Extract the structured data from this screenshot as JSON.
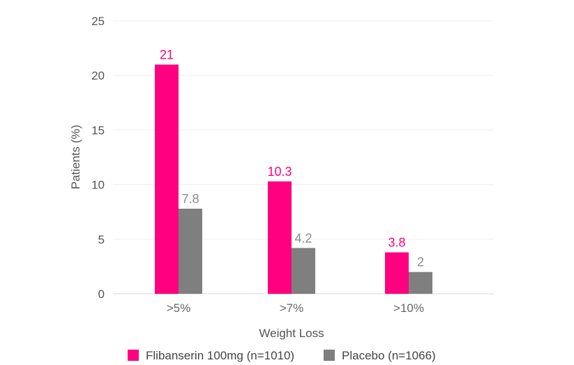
{
  "chart_data": {
    "type": "bar",
    "title": "",
    "xlabel": "Weight Loss",
    "ylabel": "Patients (%)",
    "ylim": [
      0,
      25
    ],
    "yticks": [
      0,
      5,
      10,
      15,
      20,
      25
    ],
    "grid": true,
    "legend_position": "bottom",
    "categories": [
      ">5%",
      ">7%",
      ">10%"
    ],
    "series": [
      {
        "name": "Flibanserin 100mg (n=1010)",
        "color": "#ff0080",
        "values": [
          21,
          10.3,
          3.8
        ],
        "labels": [
          "21",
          "10.3",
          "3.8"
        ]
      },
      {
        "name": "Placebo (n=1066)",
        "color": "#7f7f7f",
        "values": [
          7.8,
          4.2,
          2
        ],
        "labels": [
          "7.8",
          "4.2",
          "2"
        ]
      }
    ]
  }
}
